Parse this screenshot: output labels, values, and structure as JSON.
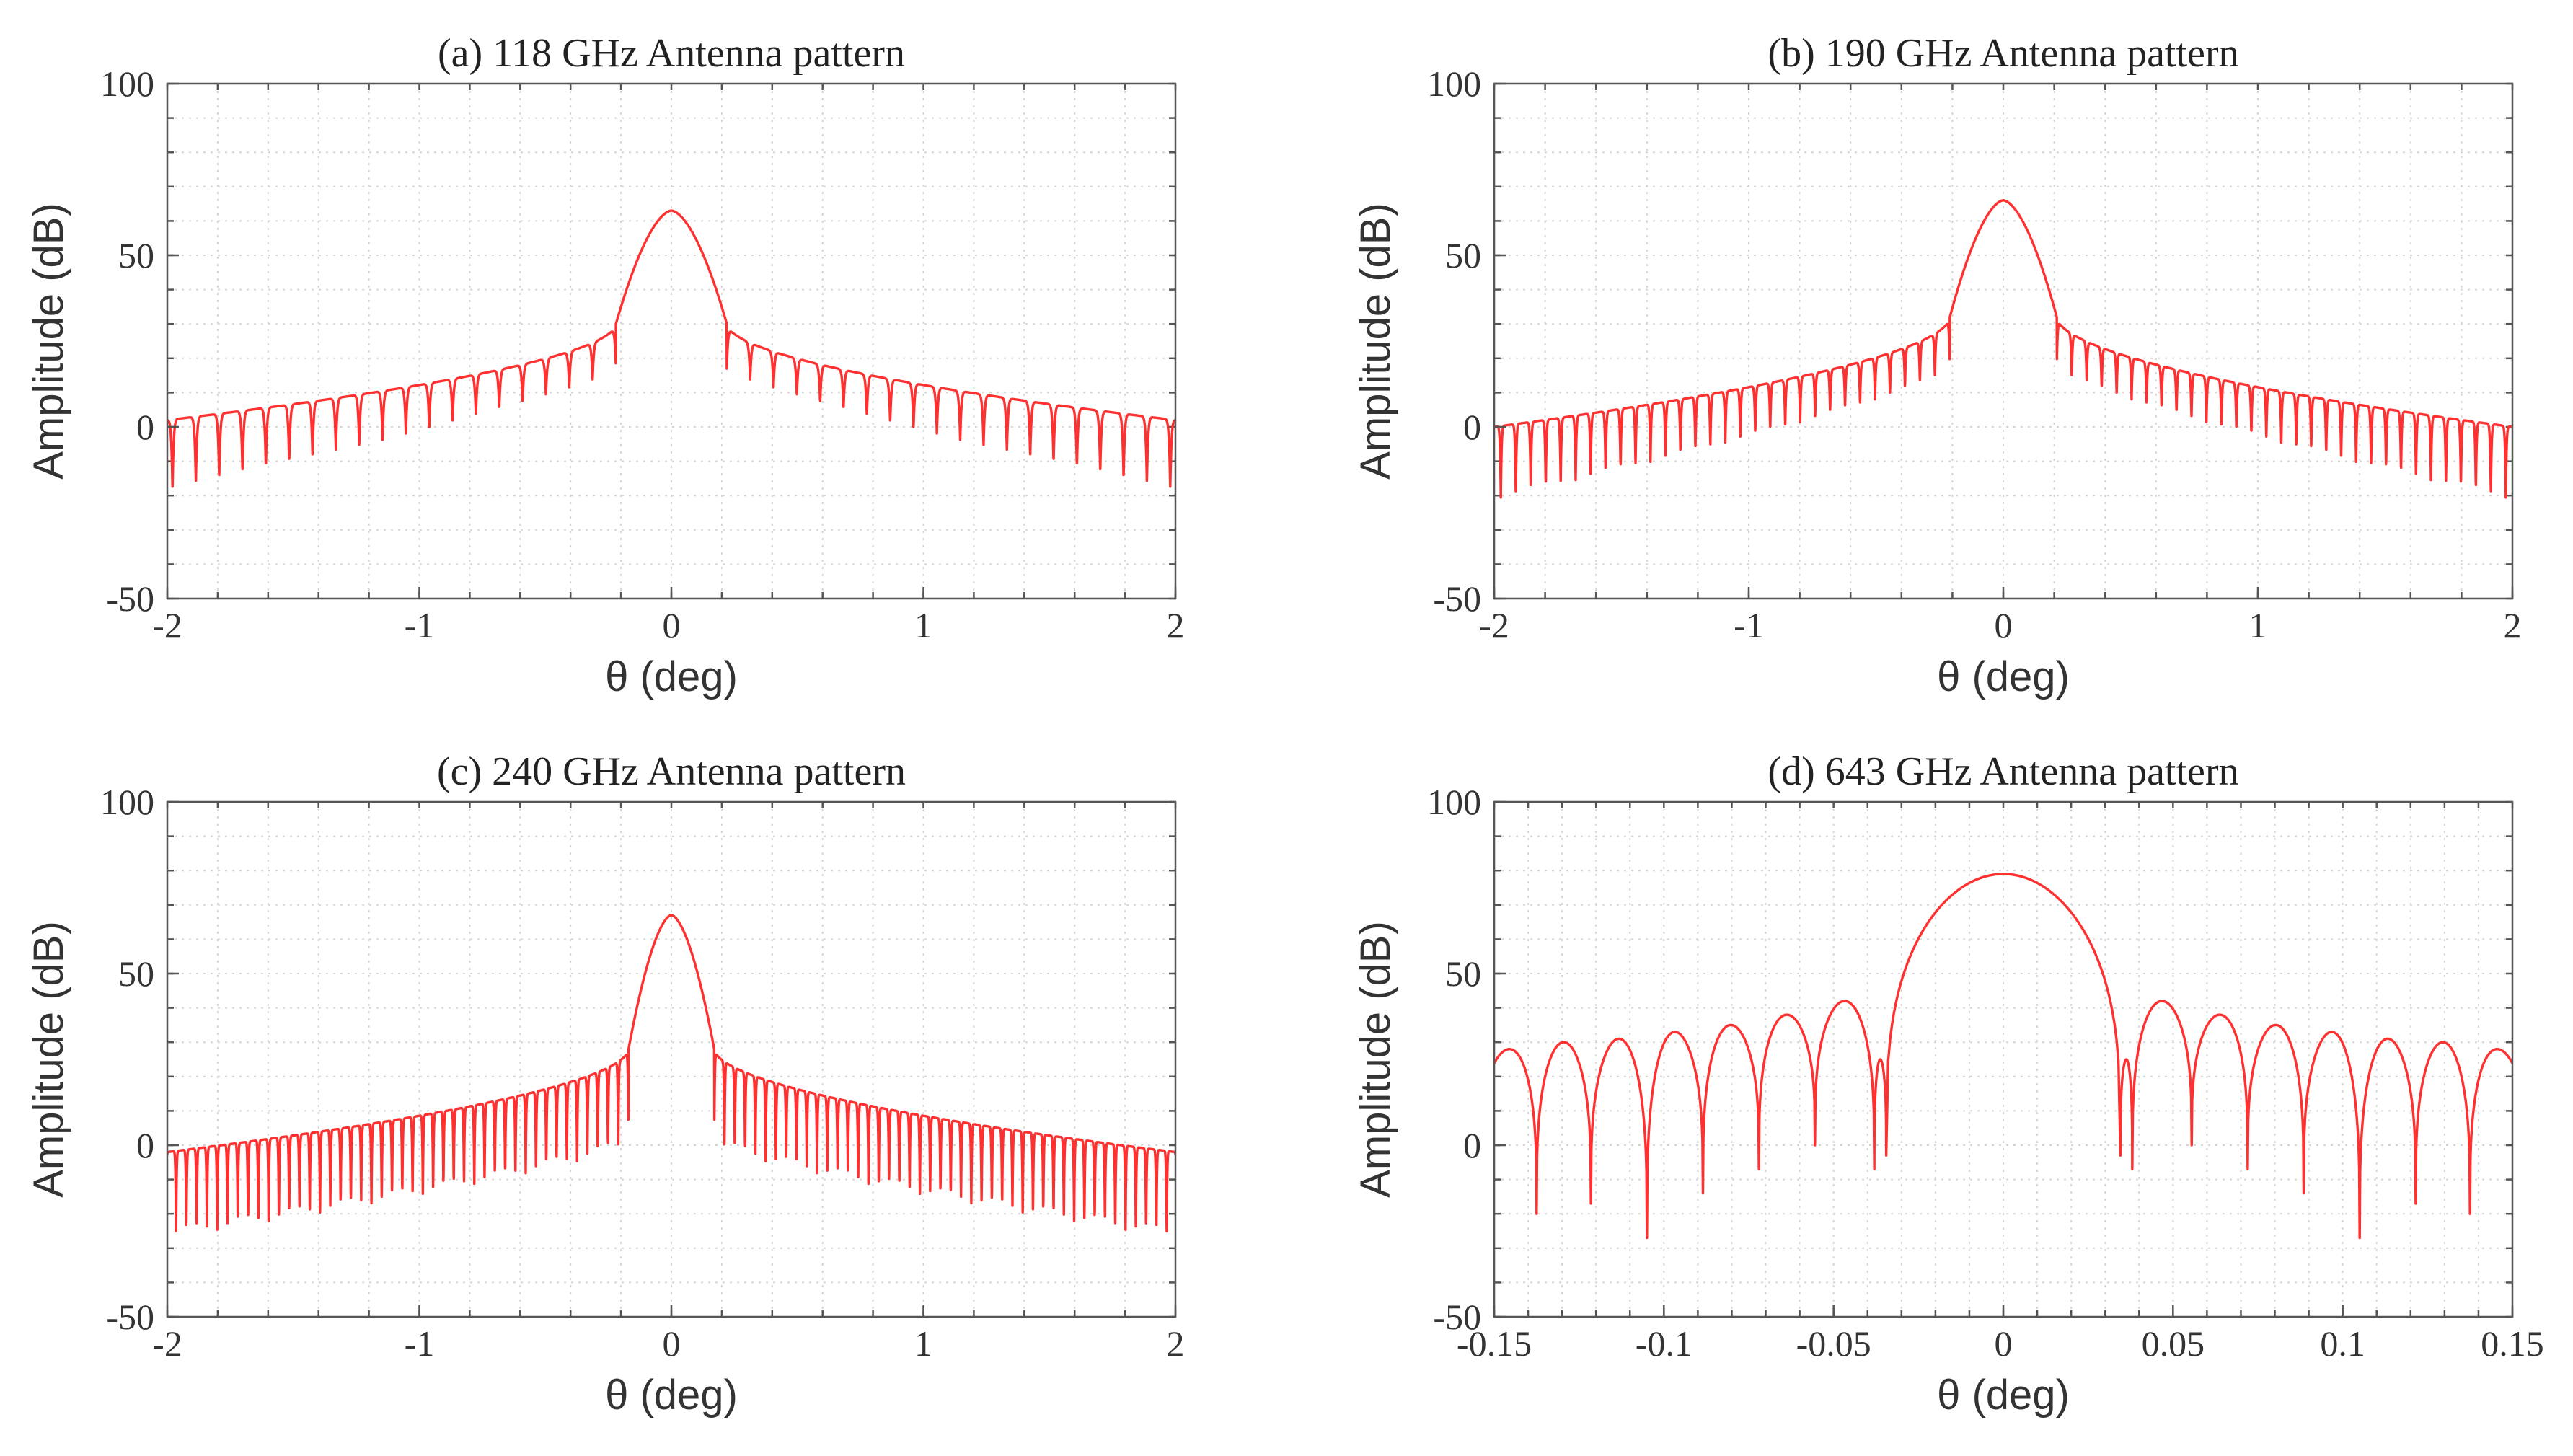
{
  "figure": {
    "series_color": "#ff3030"
  },
  "chart_data": [
    {
      "type": "line",
      "title": "(a) 118 GHz Antenna pattern",
      "xlabel": "θ (deg)",
      "ylabel": "Amplitude (dB)",
      "xlim": [
        -2,
        2
      ],
      "ylim": [
        -50,
        100
      ],
      "xticks": [
        -2,
        -1,
        0,
        1,
        2
      ],
      "xtick_labels": [
        "-2",
        "-1",
        "0",
        "1",
        "2"
      ],
      "yticks": [
        -50,
        0,
        50,
        100
      ],
      "ytick_labels": [
        "-50",
        "0",
        "50",
        "100"
      ],
      "grid": true,
      "series": [
        {
          "name": "118 GHz",
          "model": "sidelobes",
          "peak": 63,
          "main_lobe_halfwidth": 0.22,
          "shoulder": 30,
          "edge_level": 2,
          "sidelobe_period": 0.0926,
          "null_depth_edge": -18,
          "null_depth_inner": 17
        }
      ]
    },
    {
      "type": "line",
      "title": "(b) 190 GHz Antenna pattern",
      "xlabel": "θ (deg)",
      "ylabel": "Amplitude (dB)",
      "xlim": [
        -2,
        2
      ],
      "ylim": [
        -50,
        100
      ],
      "xticks": [
        -2,
        -1,
        0,
        1,
        2
      ],
      "xtick_labels": [
        "-2",
        "-1",
        "0",
        "1",
        "2"
      ],
      "yticks": [
        -50,
        0,
        50,
        100
      ],
      "ytick_labels": [
        "-50",
        "0",
        "50",
        "100"
      ],
      "grid": true,
      "series": [
        {
          "name": "190 GHz",
          "model": "sidelobes",
          "peak": 66,
          "main_lobe_halfwidth": 0.21,
          "shoulder": 32,
          "edge_level": 0,
          "sidelobe_period": 0.0588,
          "null_depth_edge": -21,
          "null_depth_inner": 17
        }
      ]
    },
    {
      "type": "line",
      "title": "(c) 240 GHz Antenna pattern",
      "xlabel": "θ (deg)",
      "ylabel": "Amplitude (dB)",
      "xlim": [
        -2,
        2
      ],
      "ylim": [
        -50,
        100
      ],
      "xticks": [
        -2,
        -1,
        0,
        1,
        2
      ],
      "xtick_labels": [
        "-2",
        "-1",
        "0",
        "1",
        "2"
      ],
      "yticks": [
        -50,
        0,
        50,
        100
      ],
      "ytick_labels": [
        "-50",
        "0",
        "50",
        "100"
      ],
      "grid": true,
      "series": [
        {
          "name": "240 GHz",
          "model": "sidelobes",
          "peak": 67,
          "main_lobe_halfwidth": 0.17,
          "shoulder": 28,
          "edge_level": -2,
          "sidelobe_period": 0.0408,
          "null_depth_edge": -27,
          "null_depth_inner": 0
        }
      ]
    },
    {
      "type": "line",
      "title": "(d) 643 GHz Antenna pattern",
      "xlabel": "θ (deg)",
      "ylabel": "Amplitude (dB)",
      "xlim": [
        -0.15,
        0.15
      ],
      "ylim": [
        -50,
        100
      ],
      "xticks": [
        -0.15,
        -0.1,
        -0.05,
        0,
        0.05,
        0.1,
        0.15
      ],
      "xtick_labels": [
        "-0.15",
        "-0.1",
        "-0.05",
        "0",
        "0.05",
        "0.1",
        "0.15"
      ],
      "yticks": [
        -50,
        0,
        50,
        100
      ],
      "ytick_labels": [
        "-50",
        "0",
        "50",
        "100"
      ],
      "grid": true,
      "series": [
        {
          "name": "643 GHz",
          "model": "lobes",
          "lobes": [
            {
              "x0": -0.1535,
              "x1": -0.1375,
              "peak": 28
            },
            {
              "x0": -0.1375,
              "x1": -0.1215,
              "peak": 30
            },
            {
              "x0": -0.1215,
              "x1": -0.105,
              "peak": 31
            },
            {
              "x0": -0.105,
              "x1": -0.0885,
              "peak": 33
            },
            {
              "x0": -0.0885,
              "x1": -0.072,
              "peak": 35
            },
            {
              "x0": -0.072,
              "x1": -0.0555,
              "peak": 38
            },
            {
              "x0": -0.0555,
              "x1": -0.038,
              "peak": 42
            },
            {
              "x0": -0.038,
              "x1": -0.0345,
              "peak": 25
            },
            {
              "x0": -0.0345,
              "x1": 0.0345,
              "peak": 79
            },
            {
              "x0": 0.0345,
              "x1": 0.038,
              "peak": 25
            },
            {
              "x0": 0.038,
              "x1": 0.0555,
              "peak": 42
            },
            {
              "x0": 0.0555,
              "x1": 0.072,
              "peak": 38
            },
            {
              "x0": 0.072,
              "x1": 0.0885,
              "peak": 35
            },
            {
              "x0": 0.0885,
              "x1": 0.105,
              "peak": 33
            },
            {
              "x0": 0.105,
              "x1": 0.1215,
              "peak": 31
            },
            {
              "x0": 0.1215,
              "x1": 0.1375,
              "peak": 30
            },
            {
              "x0": 0.1375,
              "x1": 0.1535,
              "peak": 28
            }
          ],
          "nulls": [
            {
              "x": -0.1375,
              "y": -20
            },
            {
              "x": -0.1215,
              "y": -17
            },
            {
              "x": -0.105,
              "y": -27
            },
            {
              "x": -0.0885,
              "y": -14
            },
            {
              "x": -0.072,
              "y": -7
            },
            {
              "x": -0.0555,
              "y": 0
            },
            {
              "x": -0.038,
              "y": -7
            },
            {
              "x": -0.0345,
              "y": -3
            },
            {
              "x": 0.0345,
              "y": -3
            },
            {
              "x": 0.038,
              "y": -7
            },
            {
              "x": 0.0555,
              "y": 0
            },
            {
              "x": 0.072,
              "y": -7
            },
            {
              "x": 0.0885,
              "y": -14
            },
            {
              "x": 0.105,
              "y": -27
            },
            {
              "x": 0.1215,
              "y": -17
            },
            {
              "x": 0.1375,
              "y": -20
            }
          ]
        }
      ]
    }
  ]
}
